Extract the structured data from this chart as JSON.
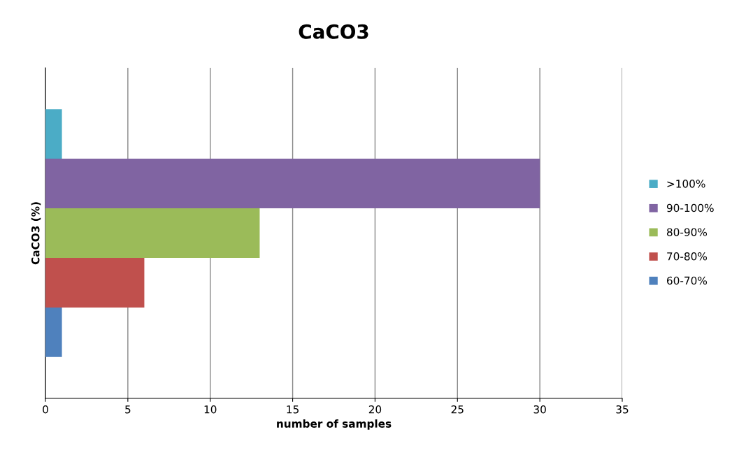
{
  "chart_data": {
    "type": "bar",
    "orientation": "horizontal",
    "title": "CaCO3",
    "xlabel": "number of samples",
    "ylabel": "CaCO3 (%)",
    "categories": [
      null
    ],
    "series": [
      {
        "name": "60-70%",
        "color": "#4f81bd",
        "values": [
          1
        ]
      },
      {
        "name": "70-80%",
        "color": "#c0504d",
        "values": [
          6
        ]
      },
      {
        "name": "80-90%",
        "color": "#9bbb59",
        "values": [
          13
        ]
      },
      {
        "name": "90-100%",
        "color": "#8064a2",
        "values": [
          30
        ]
      },
      {
        "name": ">100%",
        "color": "#4bacc6",
        "values": [
          1
        ]
      }
    ],
    "xlim": [
      0,
      35
    ],
    "xticks": [
      0,
      5,
      10,
      15,
      20,
      25,
      30,
      35
    ],
    "grid": "x",
    "legend": "right",
    "tick_labels": "x"
  }
}
